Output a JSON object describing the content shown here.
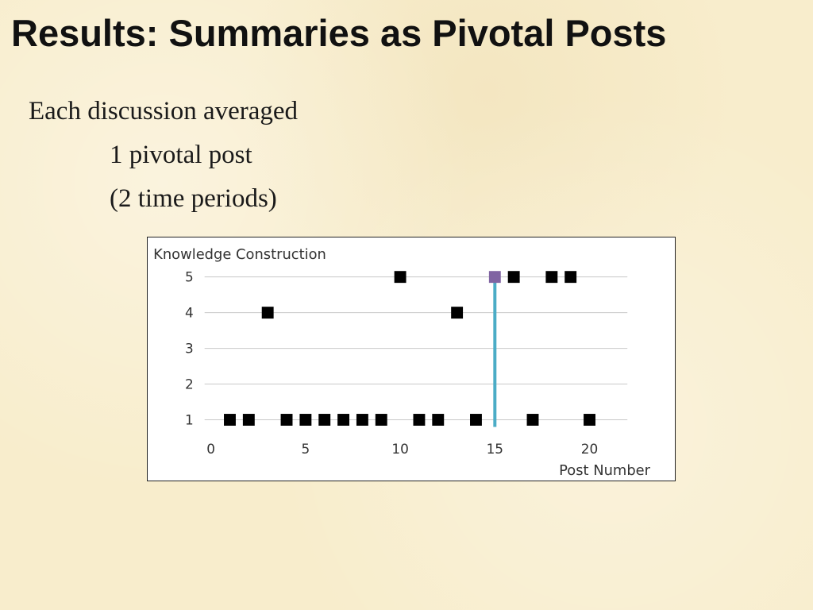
{
  "slide": {
    "title": "Results: Summaries as Pivotal Posts",
    "bullets": {
      "line1": "Each discussion averaged",
      "line2": "1 pivotal post",
      "line3": "(2 time periods)"
    }
  },
  "chart_data": {
    "type": "scatter",
    "ylabel": "Knowledge Construction",
    "xlabel": "Post Number",
    "xlim": [
      0,
      22
    ],
    "ylim": [
      1,
      5
    ],
    "x_ticks": [
      0,
      5,
      10,
      15,
      20
    ],
    "y_ticks": [
      1,
      2,
      3,
      4,
      5
    ],
    "grid": "horizontal",
    "series": [
      {
        "x": [
          1,
          2,
          3,
          4,
          5,
          6,
          7,
          8,
          9,
          10,
          11,
          12,
          13,
          14,
          15,
          16,
          17,
          18,
          19,
          20
        ],
        "y": [
          1,
          1,
          4,
          1,
          1,
          1,
          1,
          1,
          1,
          5,
          1,
          1,
          4,
          1,
          5,
          5,
          1,
          5,
          5,
          1
        ],
        "color": "#000000",
        "marker": "square",
        "highlight": {
          "x": 15,
          "y": 5,
          "color": "#8064a2"
        }
      }
    ],
    "pivotal_line": {
      "x": 15,
      "color": "#4bacc6"
    }
  }
}
